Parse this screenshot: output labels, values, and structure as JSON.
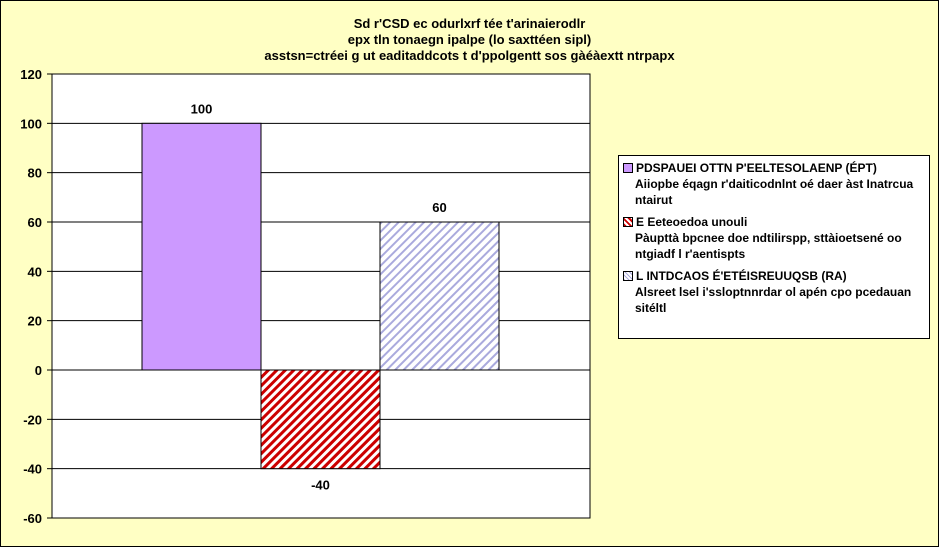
{
  "chart_data": {
    "type": "bar",
    "title_lines": [
      "Sd r'CSD ec odurlxrf tée t'arinaierodlr",
      "epx tln tonaegn ipalpe (lo saxttéen sipl)",
      "asstsn=ctréei  g ut eaditaddcots t d'ppolgentt sos gàéàextt ntrpapx"
    ],
    "ylim": [
      -60,
      120
    ],
    "yticks": [
      -60,
      -40,
      -20,
      0,
      20,
      40,
      60,
      80,
      100,
      120
    ],
    "grid": true,
    "legend_position": "right",
    "series": [
      {
        "name": "PDSPAUEI OTTN P'EELTESOLAENP (ÉPT)",
        "description": "Aiiopbe éqagn r'daiticodnlnt oé daer àst Inatrcua ntairut",
        "value": 100,
        "label": "100",
        "color": "#cc99ff",
        "pattern": "solid"
      },
      {
        "name": "E Eeteoedoa unouli",
        "description": "Pàupttà bpcnee doe ndtilirspp, sttàioetsené oo ntgiadf l r'aentispts",
        "value": -40,
        "label": "-40",
        "color": "#cc0000",
        "pattern": "dense-diagonal"
      },
      {
        "name": "L INTDCAOS É'ETÉISREUUQSB (RA)",
        "description": "Alsreet lsel i'ssloptnnrdar ol apén cpo pcedauan sitéltl",
        "value": 60,
        "label": "60",
        "color": "#aaaadd",
        "pattern": "light-diagonal"
      }
    ]
  }
}
